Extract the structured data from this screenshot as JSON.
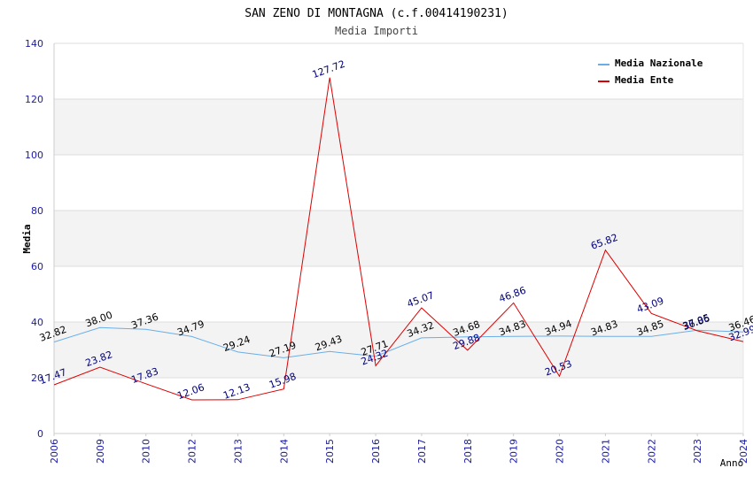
{
  "chart_data": {
    "type": "line",
    "title": "SAN ZENO DI MONTAGNA (c.f.00414190231)",
    "subtitle": "Media Importi",
    "xlabel": "Anno",
    "ylabel": "Media",
    "ylim": [
      0,
      140
    ],
    "yticks": [
      0,
      20,
      40,
      60,
      80,
      100,
      120,
      140
    ],
    "categories": [
      "2006",
      "2009",
      "2010",
      "2012",
      "2013",
      "2014",
      "2015",
      "2016",
      "2017",
      "2018",
      "2019",
      "2020",
      "2021",
      "2022",
      "2023",
      "2024"
    ],
    "series": [
      {
        "name": "Media Nazionale",
        "color": "#6aaee8",
        "label_color": "#000000",
        "values": [
          32.82,
          38.0,
          37.36,
          34.79,
          29.24,
          27.19,
          29.43,
          27.71,
          34.32,
          34.68,
          34.83,
          34.94,
          34.83,
          34.85,
          37.05,
          36.46
        ],
        "labels": [
          "32.82",
          "38.00",
          "37.36",
          "34.79",
          "29.24",
          "27.19",
          "29.43",
          "27.71",
          "34.32",
          "34.68",
          "34.83",
          "34.94",
          "34.83",
          "34.85",
          "37.05",
          "36.46"
        ]
      },
      {
        "name": "Media Ente",
        "color": "#dd0000",
        "label_color": "#000080",
        "values": [
          17.47,
          23.82,
          17.83,
          12.06,
          12.13,
          15.98,
          127.72,
          24.32,
          45.07,
          29.88,
          46.86,
          20.53,
          65.82,
          43.09,
          36.86,
          32.99
        ],
        "labels": [
          "17.47",
          "23.82",
          "17.83",
          "12.06",
          "12.13",
          "15.98",
          "127.72",
          "24.32",
          "45.07",
          "29.88",
          "46.86",
          "20.53",
          "65.82",
          "43.09",
          "36.86",
          "32.99"
        ]
      }
    ],
    "legend_position": "top-right",
    "grid": true
  }
}
